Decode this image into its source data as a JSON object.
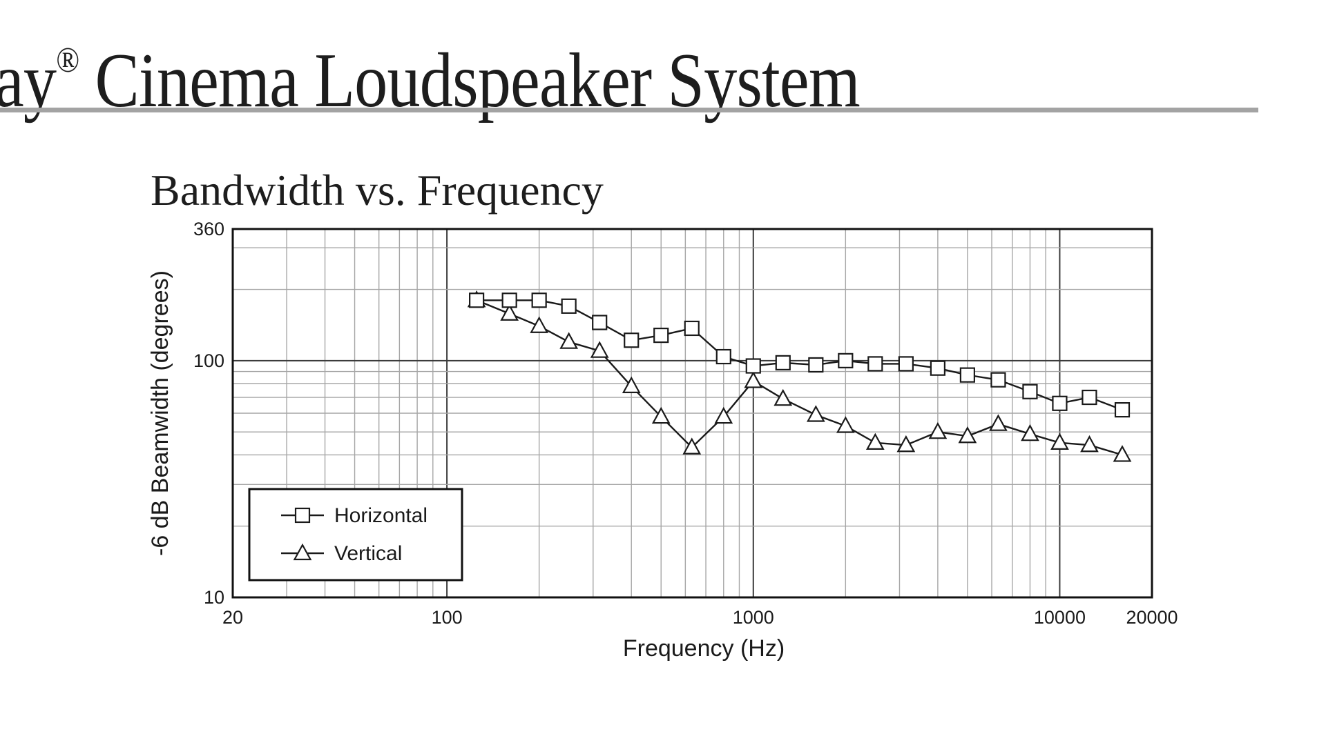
{
  "page": {
    "header_title": "ay",
    "header_title_rest": " Cinema Loudspeaker System",
    "registered_mark": "®"
  },
  "chart_data": {
    "type": "line",
    "title": "Bandwidth vs. Frequency",
    "xlabel": "Frequency (Hz)",
    "ylabel": "-6 dB Beamwidth (degrees)",
    "xscale": "log",
    "yscale": "log",
    "xlim": [
      20,
      20000
    ],
    "ylim": [
      10,
      360
    ],
    "x_ticks": [
      20,
      100,
      1000,
      10000,
      20000
    ],
    "x_tick_labels": [
      "20",
      "100",
      "1000",
      "10000",
      "20000"
    ],
    "y_ticks": [
      10,
      100,
      360
    ],
    "y_tick_labels": [
      "10",
      "100",
      "360"
    ],
    "grid": true,
    "legend_position": "bottom-left",
    "colors": {
      "line": "#1a1a1a",
      "grid": "#a6a6a6",
      "major_grid": "#3a3a3a"
    },
    "x": [
      125,
      160,
      200,
      250,
      315,
      400,
      500,
      630,
      800,
      1000,
      1250,
      1600,
      2000,
      2500,
      3150,
      4000,
      5000,
      6300,
      8000,
      10000,
      12500,
      16000
    ],
    "series": [
      {
        "name": "Horizontal",
        "marker": "square",
        "values": [
          180,
          180,
          180,
          170,
          145,
          122,
          128,
          137,
          104,
          95,
          98,
          96,
          100,
          97,
          97,
          93,
          87,
          83,
          74,
          66,
          70,
          62
        ]
      },
      {
        "name": "Vertical",
        "marker": "triangle",
        "values": [
          180,
          158,
          140,
          120,
          110,
          78,
          58,
          43,
          58,
          82,
          69,
          59,
          53,
          45,
          44,
          50,
          48,
          54,
          49,
          45,
          44,
          40
        ]
      }
    ]
  }
}
